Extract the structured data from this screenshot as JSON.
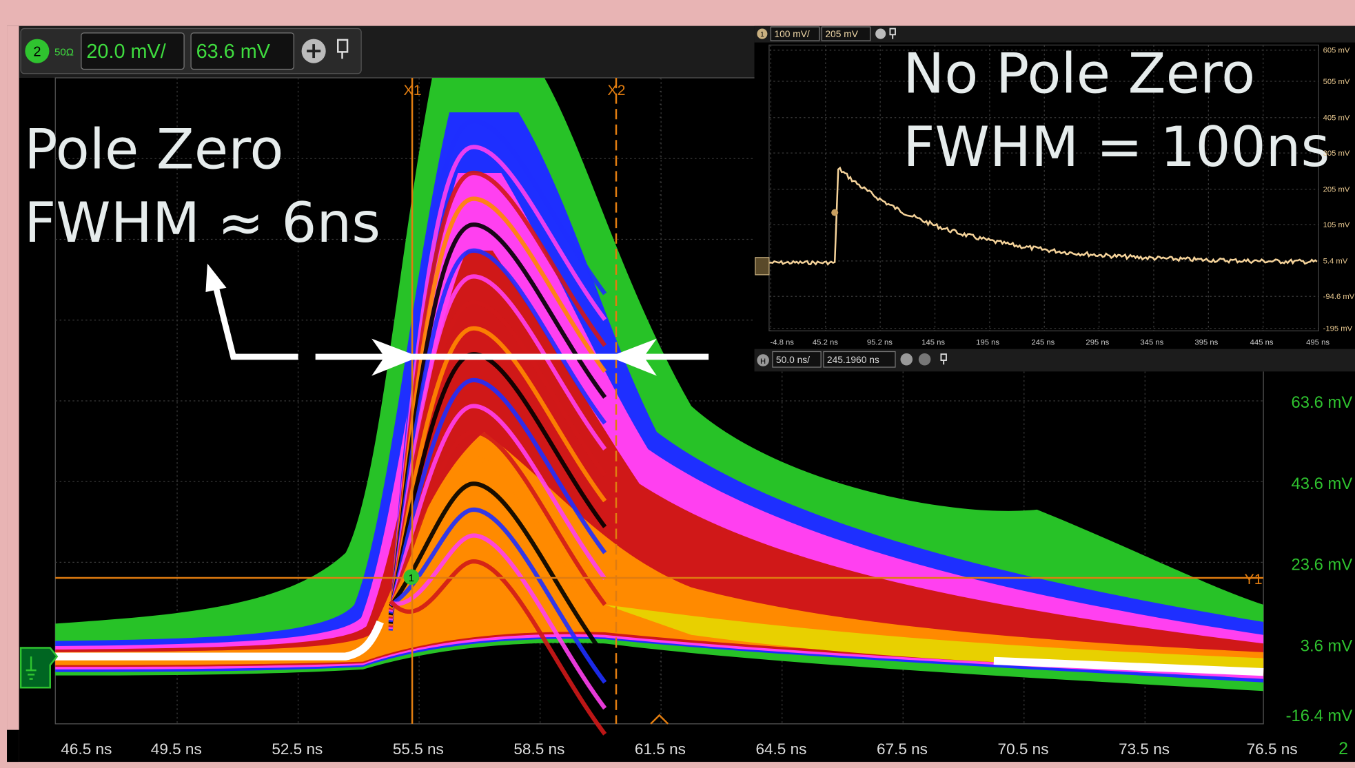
{
  "main_scope": {
    "channel": "2",
    "impedance": "50Ω",
    "scale": "20.0 mV/",
    "offset": "63.6 mV",
    "cursors": [
      "X1",
      "X2",
      "Y1"
    ],
    "marker": "1",
    "y_axis_labels": [
      "63.6 mV",
      "43.6 mV",
      "23.6 mV",
      "3.6 mV",
      "-16.4 mV"
    ],
    "x_axis_labels": [
      "46.5 ns",
      "49.5 ns",
      "52.5 ns",
      "55.5 ns",
      "58.5 ns",
      "61.5 ns",
      "64.5 ns",
      "67.5 ns",
      "70.5 ns",
      "73.5 ns",
      "76.5 ns"
    ],
    "corner_label": "2"
  },
  "annotations": {
    "with_pole_zero": [
      "Pole Zero",
      "FWHM ≈ 6ns"
    ],
    "without_pole_zero": [
      "No Pole Zero",
      "FWHM = 100ns"
    ]
  },
  "inset_scope": {
    "channel": "1",
    "scale": "100 mV/",
    "offset": "205 mV",
    "y_axis_labels": [
      "605 mV",
      "505 mV",
      "405 mV",
      "305 mV",
      "205 mV",
      "105 mV",
      "5.4 mV",
      "-94.6 mV",
      "-195 mV"
    ],
    "x_axis_labels": [
      "-4.8 ns",
      "45.2 ns",
      "95.2 ns",
      "145 ns",
      "195 ns",
      "245 ns",
      "295 ns",
      "345 ns",
      "395 ns",
      "445 ns",
      "495 ns"
    ],
    "horizontal": "H",
    "timebase": "50.0 ns/",
    "position": "245.1960 ns",
    "marker": "1"
  }
}
